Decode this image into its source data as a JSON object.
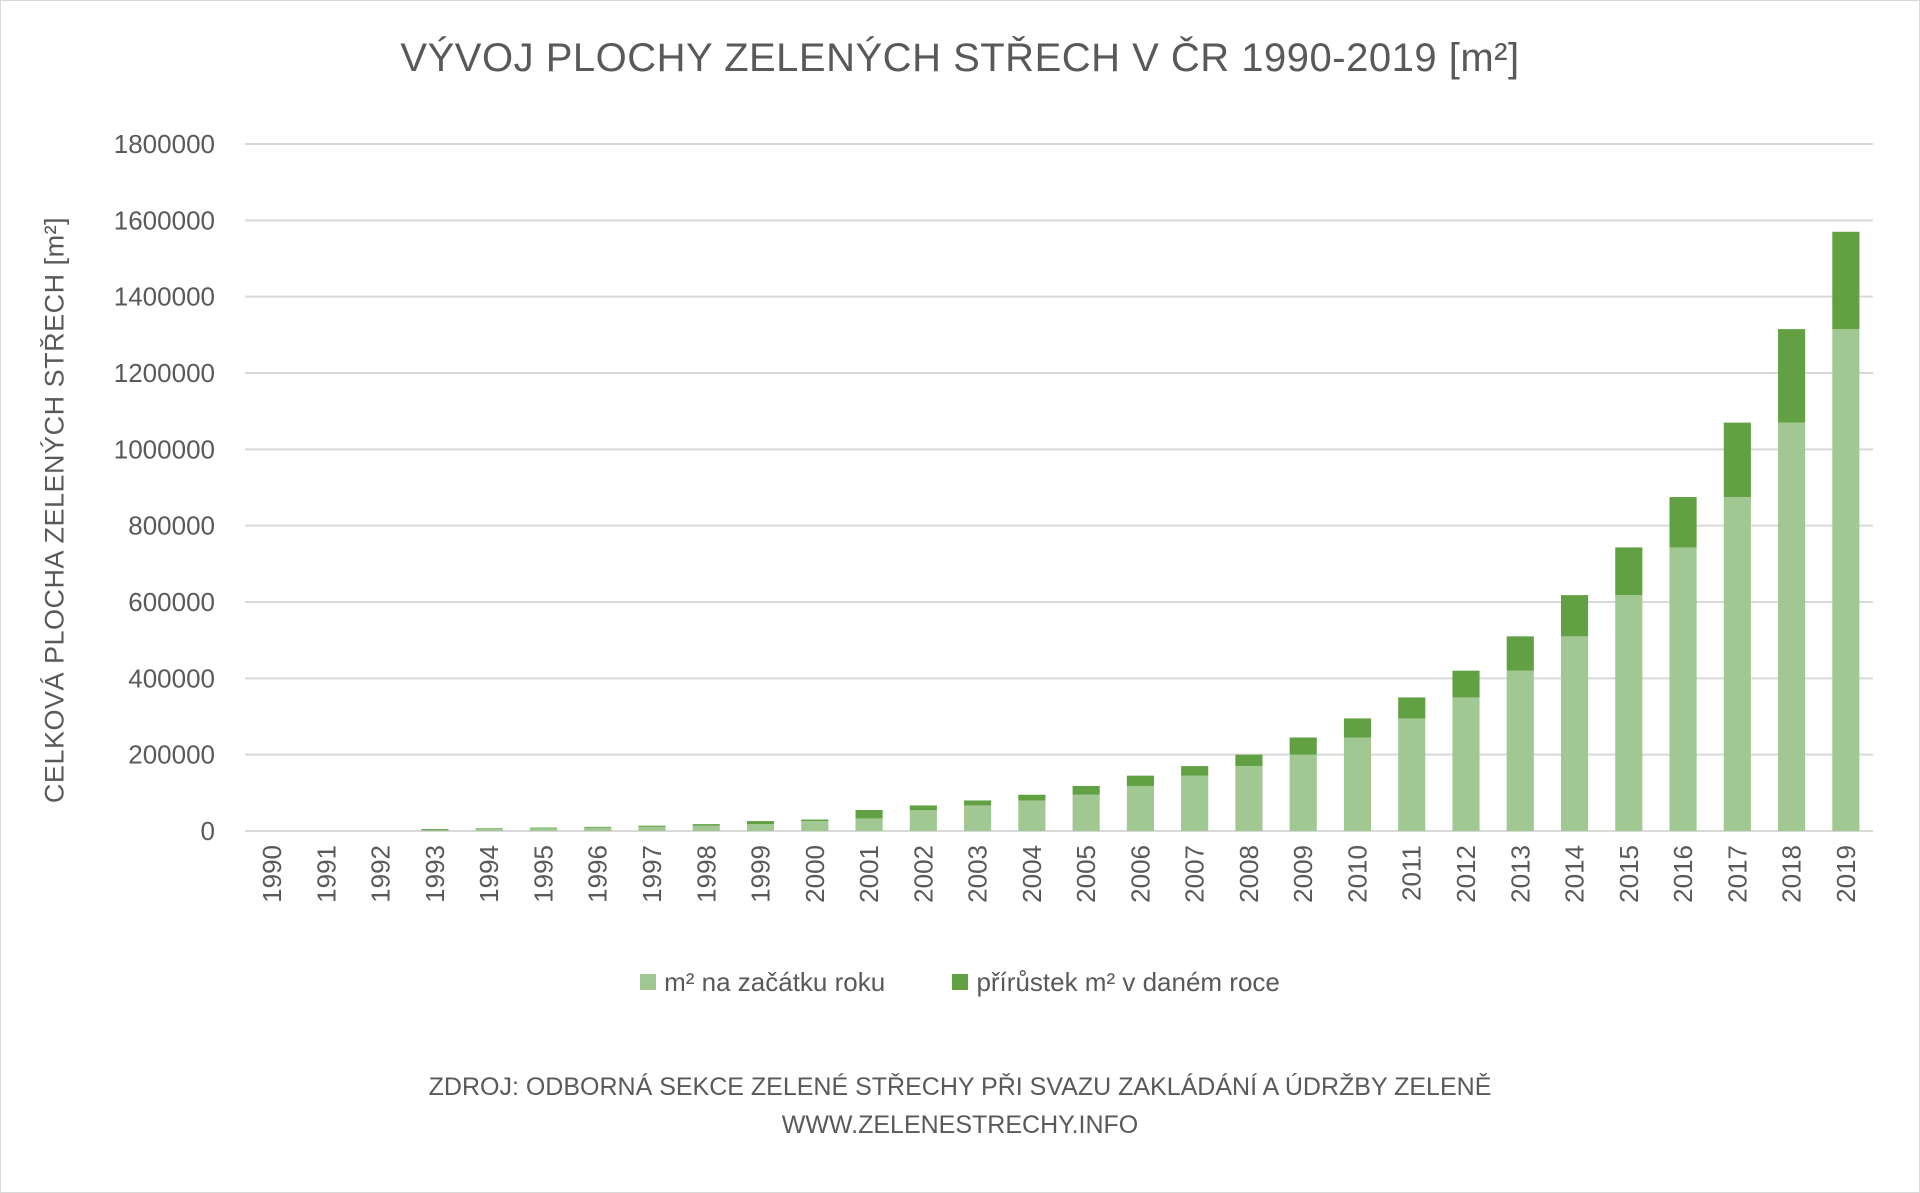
{
  "title": "VÝVOJ PLOCHY ZELENÝCH STŘECH V ČR 1990-2019 [m²]",
  "source_line1": "ZDROJ: ODBORNÁ SEKCE ZELENÉ STŘECHY PŘI SVAZU ZAKLÁDÁNÍ A ÚDRŽBY ZELENĚ",
  "source_line2": "WWW.ZELENESTRECHY.INFO",
  "colors": {
    "base": "#a1c793",
    "increment": "#61a043",
    "grid": "#d9d9d9",
    "text": "#595959"
  },
  "chart_data": {
    "type": "bar",
    "stacked": true,
    "title": "VÝVOJ PLOCHY ZELENÝCH STŘECH V ČR 1990-2019 [m²]",
    "xlabel": "",
    "ylabel": "CELKOVÁ PLOCHA ZELENÝCH STŘECH [m²]",
    "ylim": [
      0,
      1800000
    ],
    "yticks": [
      0,
      200000,
      400000,
      600000,
      800000,
      1000000,
      1200000,
      1400000,
      1600000,
      1800000
    ],
    "grid": true,
    "legend_position": "bottom",
    "categories": [
      "1990",
      "1991",
      "1992",
      "1993",
      "1994",
      "1995",
      "1996",
      "1997",
      "1998",
      "1999",
      "2000",
      "2001",
      "2002",
      "2003",
      "2004",
      "2005",
      "2006",
      "2007",
      "2008",
      "2009",
      "2010",
      "2011",
      "2012",
      "2013",
      "2014",
      "2015",
      "2016",
      "2017",
      "2018",
      "2019"
    ],
    "series": [
      {
        "name": "m² na začátku roku",
        "color": "#a1c793",
        "values": [
          0,
          0,
          0,
          2000,
          5000,
          7000,
          9000,
          11000,
          14000,
          18000,
          26000,
          33000,
          55000,
          67000,
          80000,
          95000,
          118000,
          145000,
          170000,
          200000,
          245000,
          295000,
          350000,
          420000,
          510000,
          618000,
          743000,
          875000,
          1070000,
          1315000
        ]
      },
      {
        "name": "přírůstek m² v daném roce",
        "color": "#61a043",
        "values": [
          0,
          0,
          0,
          3000,
          2000,
          2000,
          2000,
          3000,
          4000,
          8000,
          4000,
          22000,
          12000,
          13000,
          15000,
          23000,
          27000,
          25000,
          30000,
          45000,
          50000,
          55000,
          70000,
          90000,
          108000,
          125000,
          132000,
          195000,
          245000,
          255000
        ]
      }
    ]
  }
}
